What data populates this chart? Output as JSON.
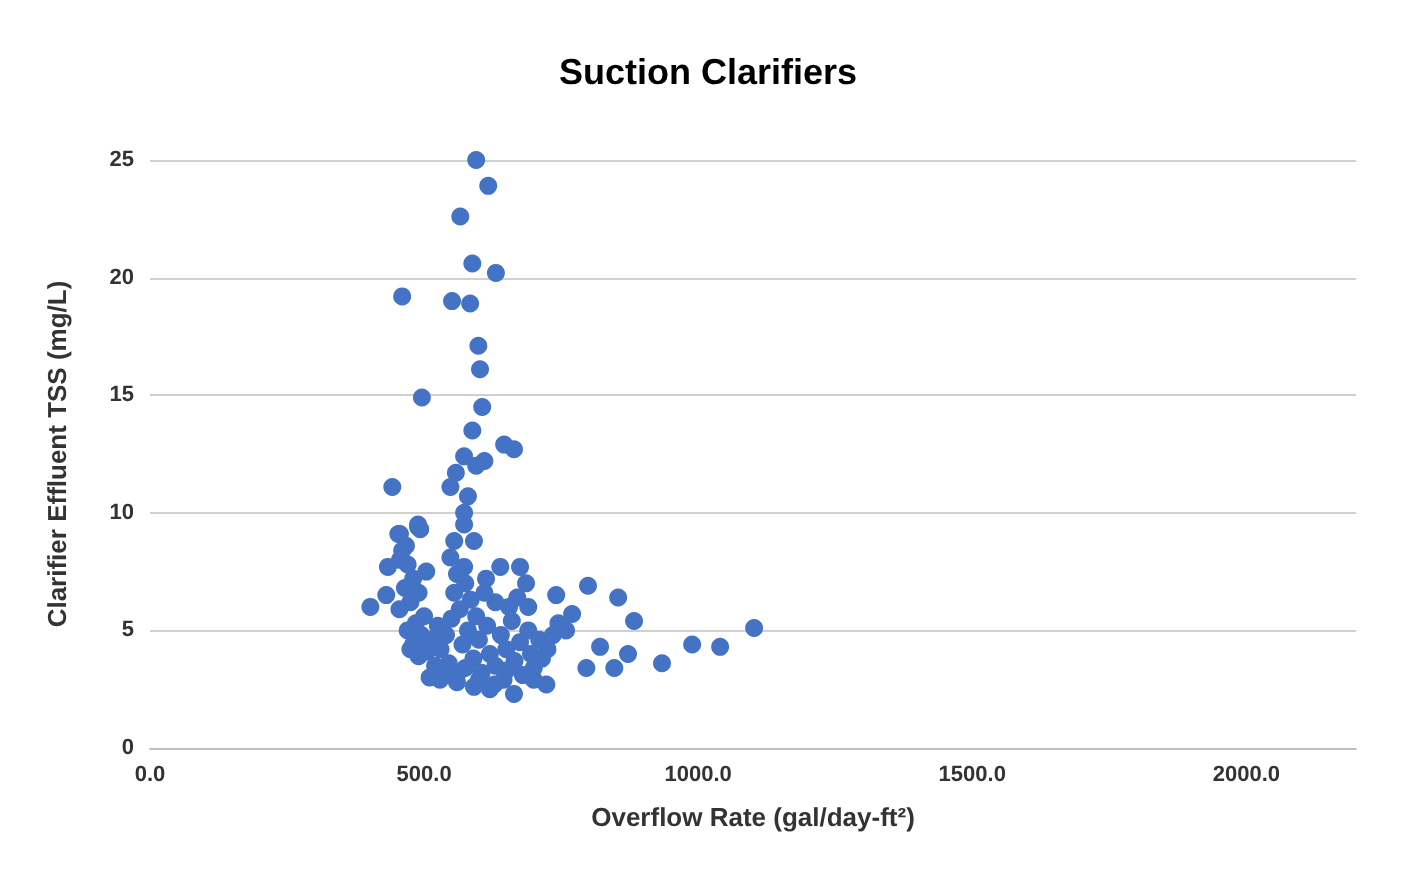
{
  "chart_data": {
    "type": "scatter",
    "title": "Suction Clarifiers",
    "xlabel": "Overflow Rate (gal/day-ft²)",
    "ylabel": "Clarifier Effluent TSS (mg/L)",
    "xlim": [
      0,
      2200
    ],
    "xticks": [
      {
        "value": 0,
        "label": "0.0"
      },
      {
        "value": 500,
        "label": "500.0"
      },
      {
        "value": 1000,
        "label": "1000.0"
      },
      {
        "value": 1500,
        "label": "1500.0"
      },
      {
        "value": 2000,
        "label": "2000.0"
      }
    ],
    "ylim": [
      0,
      25
    ],
    "yticks": [
      0,
      5,
      10,
      15,
      20,
      25
    ],
    "grid": "y",
    "marker": "circle",
    "series": [
      {
        "color": "#4472c4",
        "x": [
          595,
          617,
          566,
          588,
          631,
          460,
          551,
          584,
          599,
          602,
          496,
          606,
          588,
          646,
          664,
          573,
          610,
          595,
          558,
          442,
          548,
          580,
          573,
          573,
          489,
          453,
          493,
          456,
          489,
          555,
          591,
          434,
          504,
          456,
          467,
          639,
          675,
          573,
          613,
          686,
          402,
          431,
          741,
          799,
          854,
          883,
          1102,
          989,
          1040,
          934,
          821,
          872,
          796,
          847,
          770,
          759,
          723,
          664,
          591,
          529,
          628,
          460,
          470,
          480,
          465,
          490,
          475,
          455,
          500,
          485,
          470,
          495,
          480,
          505,
          490,
          475,
          515,
          548,
          560,
          575,
          555,
          585,
          565,
          595,
          550,
          525,
          540,
          530,
          545,
          560,
          570,
          580,
          590,
          600,
          605,
          615,
          620,
          630,
          640,
          645,
          650,
          660,
          665,
          675,
          680,
          690,
          695,
          700,
          710,
          715,
          655,
          670,
          630,
          610,
          690,
          600,
          560,
          620,
          700,
          540,
          575,
          650,
          725,
          735,
          745,
          520,
          510
        ],
        "values": [
          25,
          23.9,
          22.6,
          20.6,
          20.2,
          19.2,
          19.0,
          18.9,
          17.1,
          16.1,
          14.9,
          14.5,
          13.5,
          12.9,
          12.7,
          12.4,
          12.2,
          12.0,
          11.7,
          11.1,
          11.1,
          10.7,
          10.0,
          9.5,
          9.5,
          9.1,
          9.3,
          9.1,
          9.4,
          8.8,
          8.8,
          7.7,
          7.5,
          8.0,
          8.6,
          7.7,
          7.7,
          7.7,
          7.2,
          7.0,
          6.0,
          6.5,
          6.5,
          6.9,
          6.4,
          5.4,
          5.1,
          4.4,
          4.3,
          3.6,
          4.3,
          4.0,
          3.4,
          3.4,
          5.7,
          5.0,
          2.7,
          2.3,
          2.6,
          2.9,
          2.7,
          8.4,
          7.8,
          7.2,
          6.8,
          6.6,
          6.2,
          5.9,
          5.6,
          5.3,
          5.0,
          4.8,
          4.4,
          4.1,
          3.9,
          4.2,
          4.6,
          8.1,
          7.4,
          7.0,
          6.6,
          6.3,
          5.9,
          5.6,
          5.5,
          5.2,
          4.8,
          4.2,
          3.6,
          3.1,
          4.4,
          5.0,
          3.8,
          4.6,
          3.2,
          5.2,
          4.0,
          3.5,
          4.8,
          2.9,
          4.2,
          5.4,
          3.7,
          4.5,
          3.1,
          5.0,
          4.0,
          3.4,
          4.6,
          3.8,
          6.0,
          6.4,
          6.2,
          6.6,
          6.0,
          2.9,
          2.8,
          2.5,
          2.9,
          3.1,
          3.4,
          3.3,
          4.2,
          4.8,
          5.3,
          3.5,
          3.0
        ]
      }
    ]
  }
}
